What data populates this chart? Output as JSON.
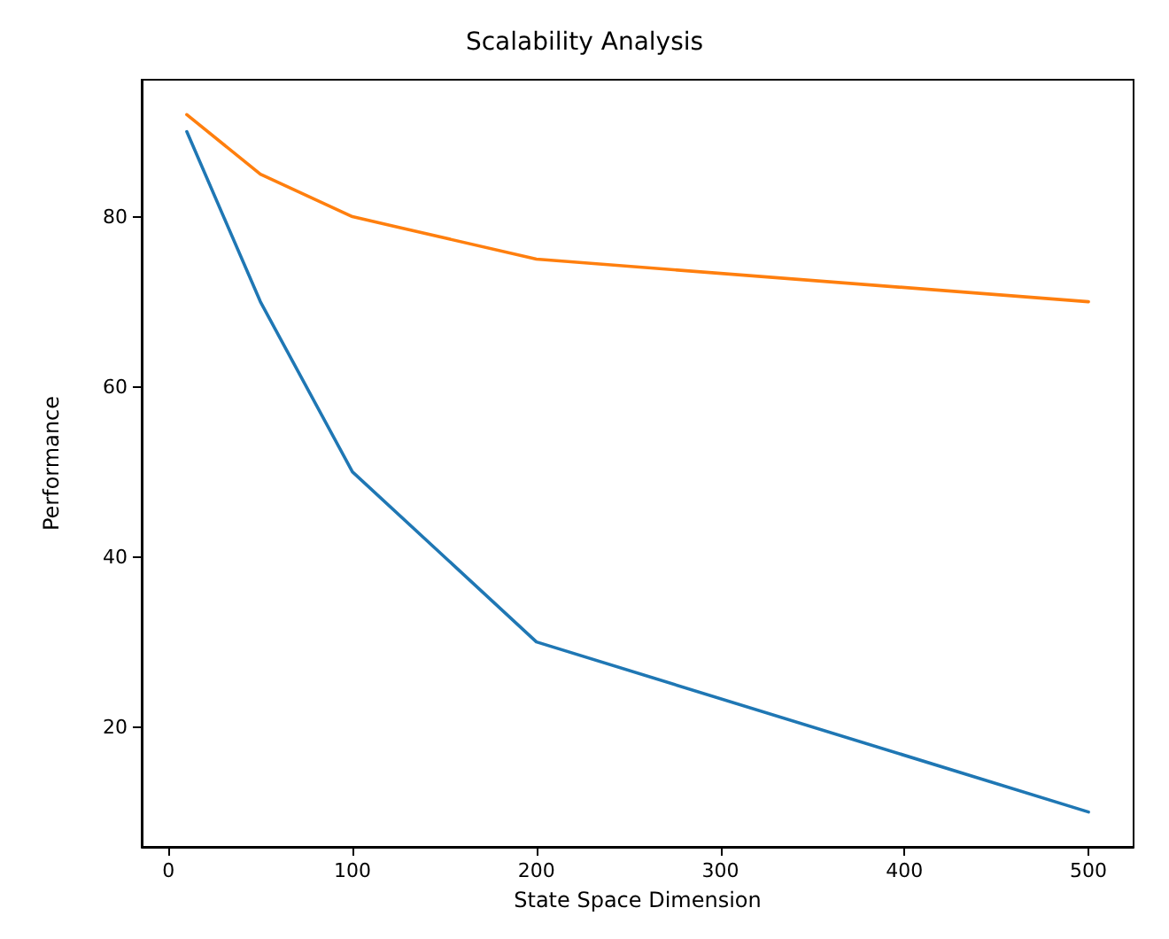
{
  "chart_data": {
    "type": "line",
    "title": "Scalability Analysis",
    "xlabel": "State Space Dimension",
    "ylabel": "Performance",
    "x": [
      10,
      50,
      100,
      200,
      500
    ],
    "series": [
      {
        "color": "#1f77b4",
        "values": [
          90,
          70,
          50,
          30,
          10
        ]
      },
      {
        "color": "#ff7f0e",
        "values": [
          92,
          85,
          80,
          75,
          70
        ]
      }
    ],
    "xlim": [
      -14.5,
      524.5
    ],
    "xticks": [
      0,
      100,
      200,
      300,
      400,
      500
    ],
    "ylim": [
      5.9,
      96.1
    ],
    "yticks": [
      20,
      40,
      60,
      80
    ],
    "grid": false,
    "marker": "none",
    "line_style": "solid"
  }
}
